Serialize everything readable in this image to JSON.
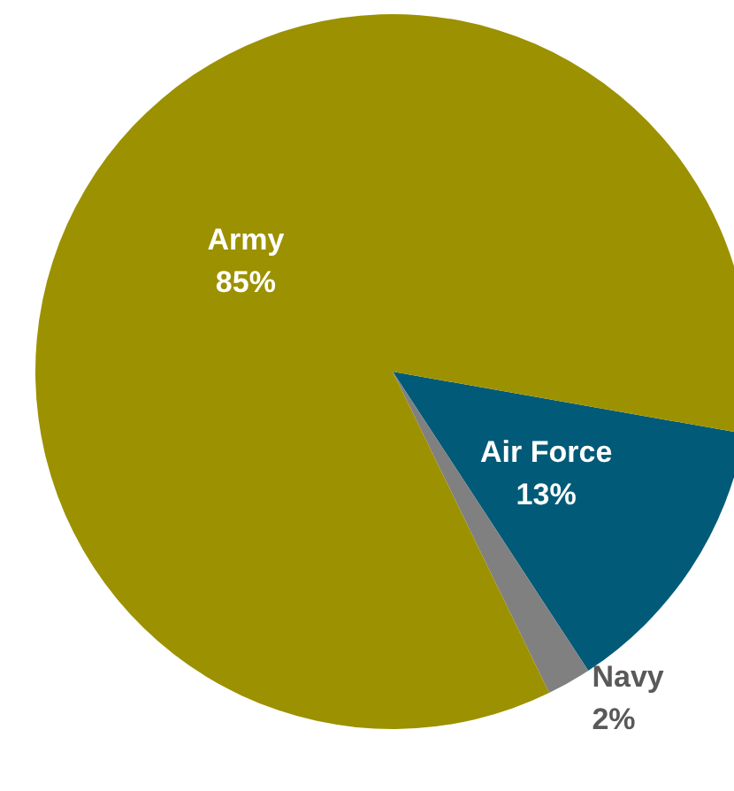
{
  "chart_data": {
    "type": "pie",
    "categories": [
      "Air Force",
      "Navy",
      "Army"
    ],
    "values": [
      13,
      2,
      85
    ],
    "colors": [
      "#005a78",
      "#808080",
      "#9c9100"
    ],
    "value_labels": [
      "13%",
      "2%",
      "85%"
    ],
    "legend": false
  }
}
